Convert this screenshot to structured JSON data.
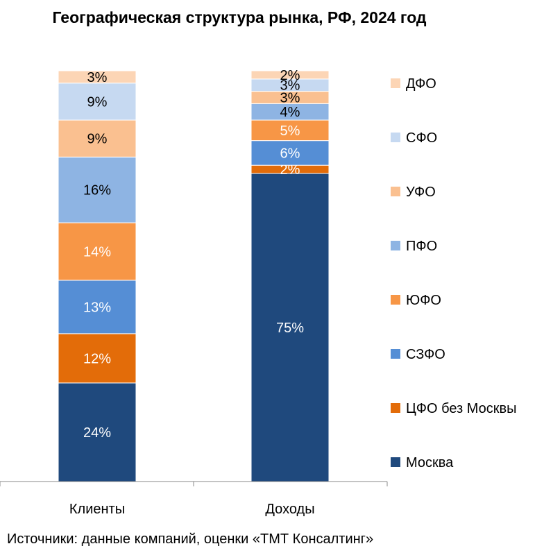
{
  "chart_data": {
    "type": "stacked-bar-100",
    "title": "Географическая структура рынка, РФ, 2024 год",
    "categories": [
      "Клиенты",
      "Доходы"
    ],
    "ylim": [
      0,
      100
    ],
    "legend_position": "right",
    "series": [
      {
        "name": "Москва",
        "color": "#1F497D",
        "values": [
          24,
          75
        ],
        "labels": [
          "24%",
          "75%"
        ],
        "label_color": "#ffffff"
      },
      {
        "name": "ЦФО без Москвы",
        "color": "#E36C09",
        "values": [
          12,
          2
        ],
        "labels": [
          "12%",
          "2%"
        ],
        "label_color": "#ffffff"
      },
      {
        "name": "СЗФО",
        "color": "#558ED5",
        "values": [
          13,
          6
        ],
        "labels": [
          "13%",
          "6%"
        ],
        "label_color": "#ffffff"
      },
      {
        "name": "ЮФО",
        "color": "#F79646",
        "values": [
          14,
          5
        ],
        "labels": [
          "14%",
          "5%"
        ],
        "label_color": "#ffffff"
      },
      {
        "name": "ПФО",
        "color": "#8EB4E3",
        "values": [
          16,
          4
        ],
        "labels": [
          "16%",
          "4%"
        ],
        "label_color": "#000000"
      },
      {
        "name": "УФО",
        "color": "#FAC090",
        "values": [
          9,
          3
        ],
        "labels": [
          "9%",
          "3%"
        ],
        "label_color": "#000000"
      },
      {
        "name": "СФО",
        "color": "#C6D9F1",
        "values": [
          9,
          3
        ],
        "labels": [
          "9%",
          "3%"
        ],
        "label_color": "#000000"
      },
      {
        "name": "ДФО",
        "color": "#FCD5B5",
        "values": [
          3,
          2
        ],
        "labels": [
          "3%",
          "2%"
        ],
        "label_color": "#000000"
      }
    ]
  },
  "source": "Источники: данные компаний, оценки «ТМТ Консалтинг»"
}
